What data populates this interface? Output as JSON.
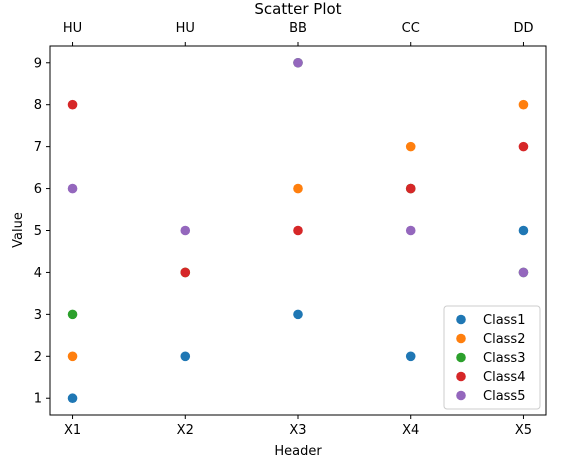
{
  "chart_data": {
    "type": "scatter",
    "title": "Scatter Plot",
    "xlabel": "Header",
    "ylabel": "Value",
    "categories": [
      "X1",
      "X2",
      "X3",
      "X4",
      "X5"
    ],
    "top_categories": [
      "HU",
      "HU",
      "BB",
      "CC",
      "DD"
    ],
    "y_ticks": [
      1,
      2,
      3,
      4,
      5,
      6,
      7,
      8,
      9
    ],
    "xlim": [
      -0.2,
      4.2
    ],
    "ylim": [
      0.6,
      9.4
    ],
    "grid": false,
    "legend_position": "bottom-right",
    "series": [
      {
        "name": "Class1",
        "color": "#1f77b4",
        "x": [
          "X1",
          "X2",
          "X3",
          "X4",
          "X5"
        ],
        "y": [
          1,
          2,
          3,
          2,
          5
        ]
      },
      {
        "name": "Class2",
        "color": "#ff7f0e",
        "x": [
          "X1",
          "X2",
          "X3",
          "X4",
          "X5"
        ],
        "y": [
          2,
          4,
          6,
          7,
          8
        ]
      },
      {
        "name": "Class3",
        "color": "#2ca02c",
        "x": [
          "X1",
          "X2",
          "X3",
          "X4",
          "X5"
        ],
        "y": [
          3,
          4,
          9,
          6,
          4
        ]
      },
      {
        "name": "Class4",
        "color": "#d62728",
        "x": [
          "X1",
          "X2",
          "X3",
          "X4",
          "X5"
        ],
        "y": [
          8,
          4,
          5,
          6,
          7
        ]
      },
      {
        "name": "Class5",
        "color": "#9467bd",
        "x": [
          "X1",
          "X2",
          "X3",
          "X4",
          "X5"
        ],
        "y": [
          6,
          5,
          9,
          5,
          4
        ]
      }
    ]
  }
}
